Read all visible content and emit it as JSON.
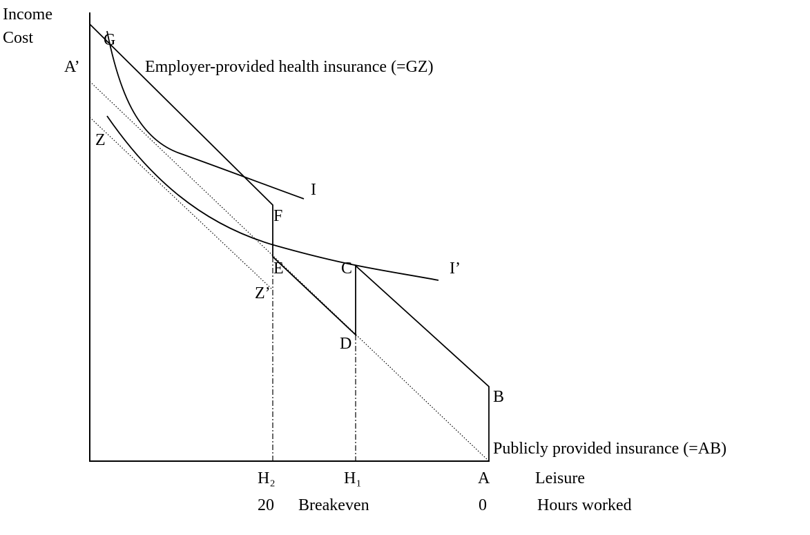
{
  "axis_labels": {
    "y_top": "Income",
    "y_bottom": "Cost",
    "x_leisure": "Leisure",
    "x_hours": "Hours worked"
  },
  "points": {
    "G": "G",
    "A_prime": "A’",
    "Z": "Z",
    "I": "I",
    "F": "F",
    "E": "E",
    "C": "C",
    "I_prime": "I’",
    "Z_prime": "Z’",
    "D": "D",
    "B": "B"
  },
  "annotations": {
    "employer": "Employer-provided health insurance (=GZ)",
    "public": "Publicly provided insurance (=AB)"
  },
  "x_axis_marks": {
    "H2": "H₂",
    "H1": "H₁",
    "A": "A"
  },
  "hours_marks": {
    "h20": "20",
    "breakeven": "Breakeven",
    "h0": "0"
  }
}
